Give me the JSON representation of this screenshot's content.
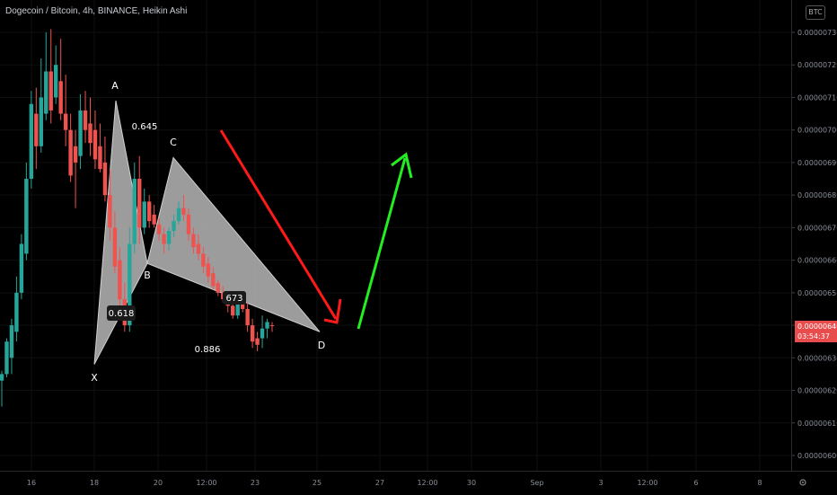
{
  "header": {
    "title": "Dogecoin / Bitcoin, 4h, BINANCE, Heikin Ashi",
    "currency_badge": "BTC"
  },
  "price_tag": {
    "price": "0.00000640",
    "countdown": "03:54:37",
    "color": "#e84c4c"
  },
  "colors": {
    "up": "#26a69a",
    "down": "#ef5350",
    "pattern_fill": "#b7b7b7",
    "arrow_down": "#ff1a1a",
    "arrow_up": "#22ee22",
    "background": "#000000"
  },
  "icons": [
    "gear-icon",
    "arrow-down-icon",
    "arrow-up-icon"
  ],
  "chart_data": {
    "type": "candlestick",
    "subtype": "Heikin Ashi harmonic pattern (XABCD)",
    "title": "Dogecoin / Bitcoin, 4h, BINANCE, Heikin Ashi",
    "ylim": [
      5.975e-06,
      7.345e-06
    ],
    "y_ticks": [
      "0.00000730",
      "0.00000720",
      "0.00000710",
      "0.00000700",
      "0.00000690",
      "0.00000680",
      "0.00000670",
      "0.00000660",
      "0.00000650",
      "0.00000640",
      "0.00000630",
      "0.00000620",
      "0.00000610",
      "0.00000600"
    ],
    "x_ticks": [
      "16",
      "18",
      "20",
      "12:00",
      "23",
      "25",
      "27",
      "12:00",
      "30",
      "Sep",
      "3",
      "12:00",
      "6",
      "8"
    ],
    "candles": [
      {
        "o": 6.23,
        "h": 6.26,
        "l": 6.15,
        "c": 6.25
      },
      {
        "o": 6.25,
        "h": 6.36,
        "l": 6.24,
        "c": 6.35
      },
      {
        "o": 6.3,
        "h": 6.42,
        "l": 6.25,
        "c": 6.4
      },
      {
        "o": 6.38,
        "h": 6.55,
        "l": 6.35,
        "c": 6.5
      },
      {
        "o": 6.5,
        "h": 6.68,
        "l": 6.48,
        "c": 6.65
      },
      {
        "o": 6.62,
        "h": 6.9,
        "l": 6.6,
        "c": 6.85
      },
      {
        "o": 6.85,
        "h": 7.12,
        "l": 6.82,
        "c": 7.08
      },
      {
        "o": 7.05,
        "h": 7.13,
        "l": 6.88,
        "c": 6.95
      },
      {
        "o": 6.95,
        "h": 7.22,
        "l": 6.93,
        "c": 7.1
      },
      {
        "o": 7.05,
        "h": 7.3,
        "l": 7.03,
        "c": 7.18
      },
      {
        "o": 7.18,
        "h": 7.31,
        "l": 7.02,
        "c": 7.06
      },
      {
        "o": 7.1,
        "h": 7.26,
        "l": 7.08,
        "c": 7.2
      },
      {
        "o": 7.15,
        "h": 7.28,
        "l": 7.03,
        "c": 7.05
      },
      {
        "o": 7.05,
        "h": 7.17,
        "l": 6.95,
        "c": 7.0
      },
      {
        "o": 7.0,
        "h": 7.05,
        "l": 6.84,
        "c": 6.86
      },
      {
        "o": 6.95,
        "h": 7.0,
        "l": 6.76,
        "c": 6.9
      },
      {
        "o": 6.92,
        "h": 7.11,
        "l": 6.88,
        "c": 7.06
      },
      {
        "o": 7.06,
        "h": 7.12,
        "l": 6.96,
        "c": 7.0
      },
      {
        "o": 7.02,
        "h": 7.1,
        "l": 6.92,
        "c": 6.96
      },
      {
        "o": 7.0,
        "h": 7.06,
        "l": 6.88,
        "c": 6.91
      },
      {
        "o": 6.95,
        "h": 7.02,
        "l": 6.87,
        "c": 6.88
      },
      {
        "o": 6.9,
        "h": 6.98,
        "l": 6.78,
        "c": 6.8
      },
      {
        "o": 6.8,
        "h": 6.88,
        "l": 6.66,
        "c": 6.7
      },
      {
        "o": 6.7,
        "h": 6.75,
        "l": 6.56,
        "c": 6.58
      },
      {
        "o": 6.6,
        "h": 6.64,
        "l": 6.44,
        "c": 6.48
      },
      {
        "o": 6.48,
        "h": 6.53,
        "l": 6.38,
        "c": 6.4
      },
      {
        "o": 6.4,
        "h": 6.7,
        "l": 6.38,
        "c": 6.65
      },
      {
        "o": 6.65,
        "h": 6.9,
        "l": 6.62,
        "c": 6.85
      },
      {
        "o": 6.85,
        "h": 6.92,
        "l": 6.65,
        "c": 6.7
      },
      {
        "o": 6.7,
        "h": 6.82,
        "l": 6.68,
        "c": 6.78
      },
      {
        "o": 6.78,
        "h": 6.8,
        "l": 6.7,
        "c": 6.72
      },
      {
        "o": 6.74,
        "h": 6.77,
        "l": 6.7,
        "c": 6.71
      },
      {
        "o": 6.71,
        "h": 6.73,
        "l": 6.66,
        "c": 6.68
      },
      {
        "o": 6.68,
        "h": 6.7,
        "l": 6.62,
        "c": 6.65
      },
      {
        "o": 6.65,
        "h": 6.7,
        "l": 6.63,
        "c": 6.69
      },
      {
        "o": 6.69,
        "h": 6.74,
        "l": 6.67,
        "c": 6.72
      },
      {
        "o": 6.72,
        "h": 6.78,
        "l": 6.71,
        "c": 6.76
      },
      {
        "o": 6.76,
        "h": 6.8,
        "l": 6.72,
        "c": 6.74
      },
      {
        "o": 6.74,
        "h": 6.76,
        "l": 6.66,
        "c": 6.68
      },
      {
        "o": 6.68,
        "h": 6.7,
        "l": 6.62,
        "c": 6.64
      },
      {
        "o": 6.65,
        "h": 6.68,
        "l": 6.6,
        "c": 6.62
      },
      {
        "o": 6.62,
        "h": 6.64,
        "l": 6.56,
        "c": 6.58
      },
      {
        "o": 6.59,
        "h": 6.61,
        "l": 6.53,
        "c": 6.55
      },
      {
        "o": 6.56,
        "h": 6.58,
        "l": 6.51,
        "c": 6.52
      },
      {
        "o": 6.53,
        "h": 6.54,
        "l": 6.49,
        "c": 6.5
      },
      {
        "o": 6.5,
        "h": 6.52,
        "l": 6.47,
        "c": 6.48
      },
      {
        "o": 6.48,
        "h": 6.5,
        "l": 6.44,
        "c": 6.46
      },
      {
        "o": 6.46,
        "h": 6.48,
        "l": 6.42,
        "c": 6.43
      },
      {
        "o": 6.43,
        "h": 6.48,
        "l": 6.42,
        "c": 6.47
      },
      {
        "o": 6.47,
        "h": 6.5,
        "l": 6.44,
        "c": 6.45
      },
      {
        "o": 6.45,
        "h": 6.47,
        "l": 6.38,
        "c": 6.4
      },
      {
        "o": 6.4,
        "h": 6.42,
        "l": 6.33,
        "c": 6.35
      },
      {
        "o": 6.36,
        "h": 6.38,
        "l": 6.32,
        "c": 6.34
      },
      {
        "o": 6.36,
        "h": 6.43,
        "l": 6.33,
        "c": 6.39
      },
      {
        "o": 6.39,
        "h": 6.42,
        "l": 6.36,
        "c": 6.41
      },
      {
        "o": 6.4,
        "h": 6.41,
        "l": 6.38,
        "c": 6.398
      }
    ],
    "pattern": {
      "points": {
        "X": 6.28,
        "A": 7.09,
        "B": 6.59,
        "C": 6.915,
        "D": 6.38
      },
      "point_labels": [
        "X",
        "A",
        "B",
        "C",
        "D"
      ],
      "ratios": [
        "0.618",
        "0.645",
        "0.886",
        "673"
      ]
    }
  }
}
